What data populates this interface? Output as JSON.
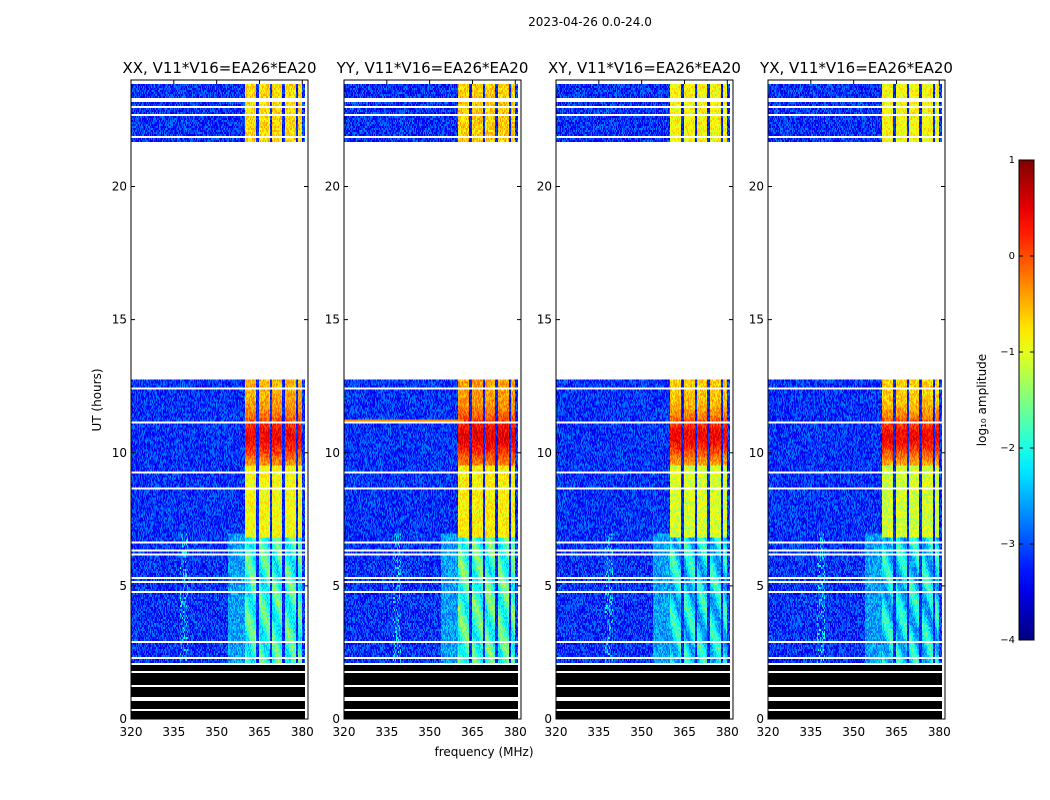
{
  "figure": {
    "suptitle": "2023-04-26 0.0-24.0"
  },
  "chart_data": {
    "type": "heatmap",
    "title": "2023-04-26 0.0-24.0",
    "xlabel": "frequency (MHz)",
    "ylabel": "UT (hours)",
    "xlim": [
      320,
      382
    ],
    "ylim": [
      0,
      24
    ],
    "xticks": [
      "320",
      "335",
      "350",
      "365",
      "380"
    ],
    "yticks": [
      "0",
      "5",
      "10",
      "15",
      "20"
    ],
    "panels": [
      {
        "title": "XX, V11*V16=EA26*EA20",
        "rfi_strength": 1.0,
        "flare_freq_max": 382
      },
      {
        "title": "YY, V11*V16=EA26*EA20",
        "rfi_strength": 1.15,
        "flare_freq_max": 362
      },
      {
        "title": "XY, V11*V16=EA26*EA20",
        "rfi_strength": 0.9,
        "flare_freq_max": 341
      },
      {
        "title": "YX, V11*V16=EA26*EA20",
        "rfi_strength": 0.85,
        "flare_freq_max": 341
      }
    ],
    "data_gaps_ut": [
      [
        12.8,
        21.7
      ],
      [
        13.0,
        13.0
      ]
    ],
    "rfi_band_mhz": [
      360,
      380
    ],
    "rfi_channel_gaps_mhz": [
      364.3,
      369.0,
      373.5,
      378.2
    ],
    "colorbar": {
      "label": "log₁₀ amplitude",
      "range": [
        -4,
        1
      ],
      "ticks": [
        "−4",
        "−3",
        "−2",
        "−1",
        "0",
        "1"
      ],
      "colormap": "jet"
    }
  }
}
